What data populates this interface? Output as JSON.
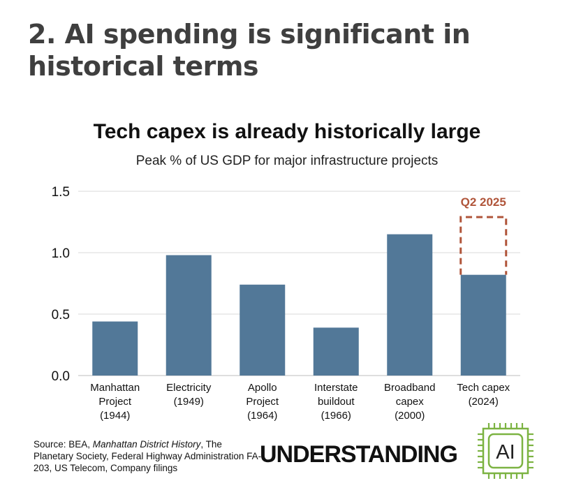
{
  "page": {
    "heading": "2. AI spending is significant in historical terms"
  },
  "chart_data": {
    "type": "bar",
    "title": "Tech capex is already historically large",
    "subtitle": "Peak % of US GDP for major infrastructure projects",
    "xlabel": "",
    "ylabel": "",
    "ylim": [
      0,
      1.5
    ],
    "yticks": [
      0.0,
      0.5,
      1.0,
      1.5
    ],
    "ytick_labels": [
      "0.0",
      "0.5",
      "1.0",
      "1.5"
    ],
    "grid": true,
    "categories": [
      [
        "Manhattan",
        "Project",
        "(1944)"
      ],
      [
        "Electricity",
        "(1949)"
      ],
      [
        "Apollo",
        "Project",
        "(1964)"
      ],
      [
        "Interstate",
        "buildout",
        "(1966)"
      ],
      [
        "Broadband",
        "capex",
        "(2000)"
      ],
      [
        "Tech capex",
        "(2024)"
      ]
    ],
    "values": [
      0.44,
      0.98,
      0.74,
      0.39,
      1.15,
      0.82
    ],
    "bar_color": "#527898",
    "annotation": {
      "category_index": 5,
      "label": "Q2 2025",
      "value": 1.29,
      "color": "#b0553a"
    }
  },
  "footer": {
    "source_prefix": "Source: BEA, ",
    "source_italic": "Manhattan District History",
    "source_rest": ", The Planetary Society, Federal Highway Administration FA-203, US Telecom, Company filings",
    "brand": "UNDERSTANDING",
    "logo_text": "AI",
    "logo_color": "#7cb342"
  }
}
